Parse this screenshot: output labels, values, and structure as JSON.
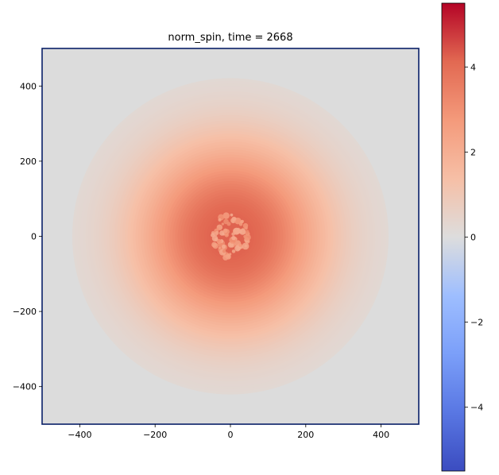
{
  "chart_data": {
    "type": "heatmap",
    "title": "norm_spin, time = 2668",
    "xlabel": "",
    "ylabel": "",
    "xlim": [
      -500,
      500
    ],
    "ylim": [
      -500,
      500
    ],
    "x_ticks": [
      -400,
      -200,
      0,
      200,
      400
    ],
    "y_ticks": [
      -400,
      -200,
      0,
      200,
      400
    ],
    "x_tick_labels": [
      "−400",
      "−200",
      "0",
      "200",
      "400"
    ],
    "y_tick_labels": [
      "400",
      "200",
      "0",
      "−200",
      "−400"
    ],
    "grid": false,
    "field": {
      "center": [
        0,
        0
      ],
      "peak_value": 4.2,
      "peak_radius": 45,
      "decay_radius": 260,
      "background_value": 0.1,
      "core_radius": 55,
      "core_value": 2.6
    },
    "colorbar": {
      "colormap": "coolwarm",
      "range": [
        -5.5,
        5.5
      ],
      "ticks": [
        4,
        2,
        0,
        -2,
        -4
      ],
      "tick_labels": [
        "4",
        "2",
        "0",
        "−2",
        "−4"
      ],
      "low_color": "#3b4cc0",
      "mid_color": "#dddddd",
      "high_color": "#b40426"
    }
  }
}
